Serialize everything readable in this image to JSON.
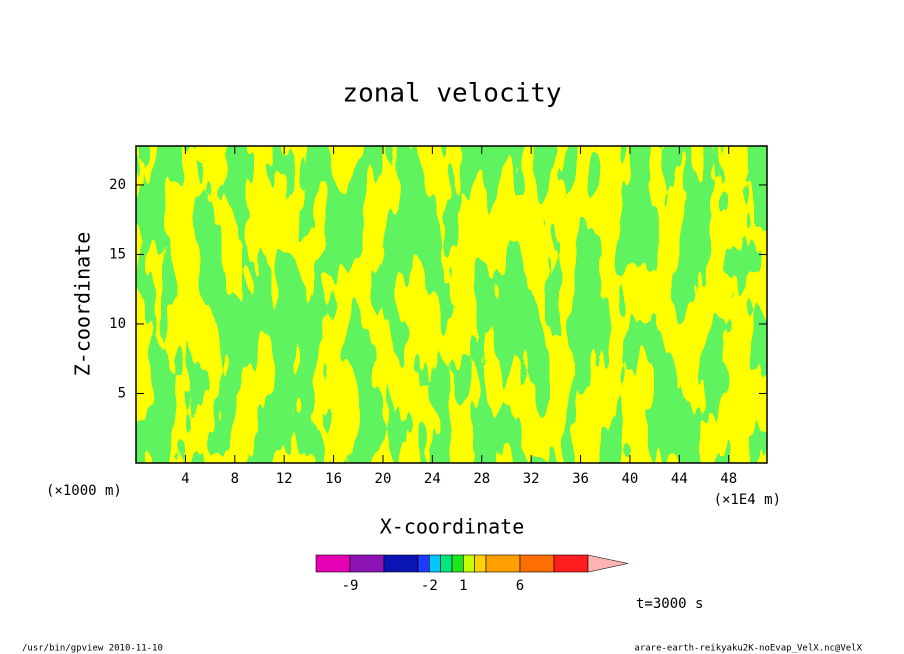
{
  "chart_data": {
    "type": "contour",
    "title": "zonal velocity",
    "xlabel": "X-coordinate",
    "ylabel": "Z-coordinate",
    "x_unit_label": "(×1E4 m)",
    "y_unit_label": "(×1000 m)",
    "xlim": [
      0,
      51.1
    ],
    "ylim": [
      0,
      22.8
    ],
    "xticks": [
      4,
      8,
      12,
      16,
      20,
      24,
      28,
      32,
      36,
      40,
      44,
      48
    ],
    "yticks": [
      5,
      10,
      15,
      20
    ],
    "colorbar": {
      "levels": [
        -12,
        -9,
        -6,
        -3,
        -2,
        -1,
        0,
        1,
        2,
        3,
        6,
        9,
        12
      ],
      "colors": [
        "#e600b4",
        "#8c14b4",
        "#0a14b4",
        "#1e3cff",
        "#00c8ff",
        "#00e678",
        "#1ee61e",
        "#c8ff00",
        "#ffd200",
        "#ffa000",
        "#ff6e00",
        "#ff1e1e",
        "#f08080"
      ],
      "overflow_color": "#ffb4b4",
      "ticks": [
        -9,
        -2,
        1,
        6
      ]
    },
    "annotation": "t=3000 s",
    "footer_left": "/usr/bin/gpview   2010-11-10",
    "footer_right": "arare-earth-reikyaku2K-noEvap_VelX.nc@VelX"
  }
}
